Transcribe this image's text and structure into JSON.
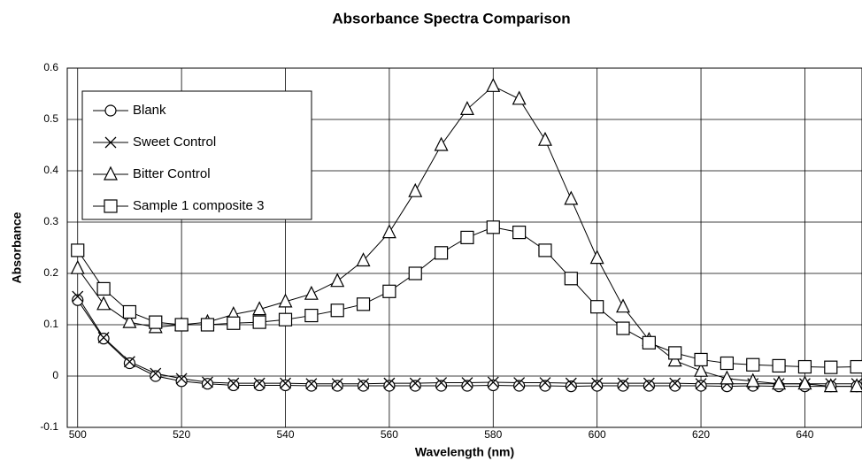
{
  "chart_data": {
    "type": "line",
    "title": "Absorbance Spectra Comparison",
    "x_label": "Wavelength (nm)",
    "y_label": "Absorbance",
    "x": [
      500,
      505,
      510,
      515,
      520,
      525,
      530,
      535,
      540,
      545,
      550,
      555,
      560,
      565,
      570,
      575,
      580,
      585,
      590,
      595,
      600,
      605,
      610,
      615,
      620,
      625,
      630,
      635,
      640,
      645,
      650
    ],
    "xlim": [
      498,
      651
    ],
    "xticks": [
      500,
      520,
      540,
      560,
      580,
      600,
      620,
      640
    ],
    "ylim": [
      -0.1,
      0.6
    ],
    "yticks": [
      -0.1,
      0,
      0.1,
      0.2,
      0.3,
      0.4,
      0.5,
      0.6
    ],
    "grid": true,
    "legend": "upper left",
    "series": [
      {
        "name": "Blank",
        "color": "#000000",
        "marker": "circle",
        "values": [
          0.148,
          0.073,
          0.025,
          0.0,
          -0.01,
          -0.015,
          -0.018,
          -0.018,
          -0.018,
          -0.019,
          -0.019,
          -0.019,
          -0.019,
          -0.019,
          -0.019,
          -0.019,
          -0.018,
          -0.019,
          -0.019,
          -0.02,
          -0.019,
          -0.019,
          -0.019,
          -0.019,
          -0.019,
          -0.02,
          -0.019,
          -0.02,
          -0.02,
          -0.02,
          -0.02
        ]
      },
      {
        "name": "Sweet Control",
        "color": "#000000",
        "marker": "x",
        "values": [
          0.155,
          0.075,
          0.028,
          0.005,
          -0.005,
          -0.012,
          -0.014,
          -0.014,
          -0.014,
          -0.015,
          -0.015,
          -0.015,
          -0.014,
          -0.014,
          -0.013,
          -0.013,
          -0.012,
          -0.013,
          -0.013,
          -0.014,
          -0.014,
          -0.014,
          -0.014,
          -0.014,
          -0.015,
          -0.015,
          -0.015,
          -0.015,
          -0.015,
          -0.015,
          -0.015
        ]
      },
      {
        "name": "Bitter Control",
        "color": "#000000",
        "marker": "triangle",
        "values": [
          0.21,
          0.14,
          0.105,
          0.095,
          0.1,
          0.105,
          0.12,
          0.13,
          0.145,
          0.16,
          0.185,
          0.225,
          0.28,
          0.36,
          0.45,
          0.52,
          0.565,
          0.54,
          0.46,
          0.345,
          0.23,
          0.135,
          0.07,
          0.03,
          0.01,
          -0.005,
          -0.01,
          -0.015,
          -0.015,
          -0.02,
          -0.02
        ]
      },
      {
        "name": "Sample 1 composite 3",
        "color": "#000000",
        "marker": "square",
        "values": [
          0.245,
          0.17,
          0.125,
          0.105,
          0.1,
          0.1,
          0.103,
          0.105,
          0.11,
          0.118,
          0.128,
          0.14,
          0.165,
          0.2,
          0.24,
          0.27,
          0.29,
          0.28,
          0.245,
          0.19,
          0.135,
          0.093,
          0.065,
          0.045,
          0.032,
          0.025,
          0.022,
          0.02,
          0.018,
          0.017,
          0.018
        ]
      }
    ]
  }
}
